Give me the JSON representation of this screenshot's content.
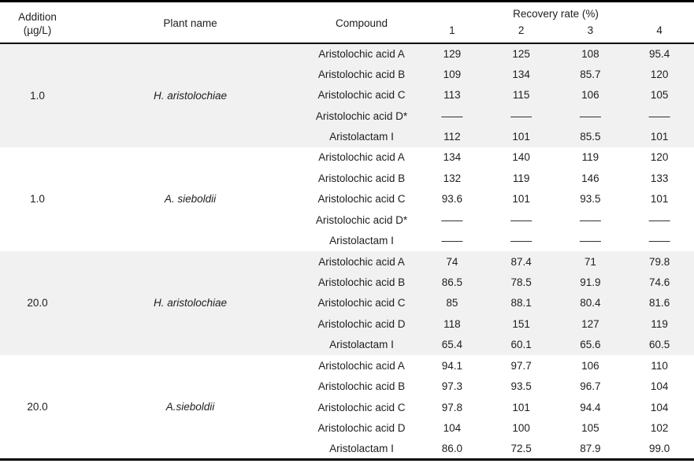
{
  "table": {
    "header": {
      "addition_line1": "Addition",
      "addition_line2": "(µg/L)",
      "plant_label": "Plant name",
      "compound_label": "Compound",
      "recovery_label": "Recovery rate (%)",
      "runs": [
        "1",
        "2",
        "3",
        "4"
      ]
    },
    "empty_value": "——",
    "groups": [
      {
        "addition": "1.0",
        "plant": "H. aristolochiae",
        "shaded": true,
        "rows": [
          {
            "compound": "Aristolochic acid A",
            "values": [
              "129",
              "125",
              "108",
              "95.4"
            ]
          },
          {
            "compound": "Aristolochic acid B",
            "values": [
              "109",
              "134",
              "85.7",
              "120"
            ]
          },
          {
            "compound": "Aristolochic acid C",
            "values": [
              "113",
              "115",
              "106",
              "105"
            ]
          },
          {
            "compound": "Aristolochic acid D*",
            "values": [
              "——",
              "——",
              "——",
              "——"
            ]
          },
          {
            "compound": "Aristolactam I",
            "values": [
              "112",
              "101",
              "85.5",
              "101"
            ]
          }
        ]
      },
      {
        "addition": "1.0",
        "plant": "A. sieboldii",
        "shaded": false,
        "rows": [
          {
            "compound": "Aristolochic acid A",
            "values": [
              "134",
              "140",
              "119",
              "120"
            ]
          },
          {
            "compound": "Aristolochic acid B",
            "values": [
              "132",
              "119",
              "146",
              "133"
            ]
          },
          {
            "compound": "Aristolochic acid C",
            "values": [
              "93.6",
              "101",
              "93.5",
              "101"
            ]
          },
          {
            "compound": "Aristolochic acid D*",
            "values": [
              "——",
              "——",
              "——",
              "——"
            ]
          },
          {
            "compound": "Aristolactam I",
            "values": [
              "——",
              "——",
              "——",
              "——"
            ]
          }
        ]
      },
      {
        "addition": "20.0",
        "plant": "H. aristolochiae",
        "shaded": true,
        "rows": [
          {
            "compound": "Aristolochic acid A",
            "values": [
              "74",
              "87.4",
              "71",
              "79.8"
            ]
          },
          {
            "compound": "Aristolochic acid B",
            "values": [
              "86.5",
              "78.5",
              "91.9",
              "74.6"
            ]
          },
          {
            "compound": "Aristolochic acid C",
            "values": [
              "85",
              "88.1",
              "80.4",
              "81.6"
            ]
          },
          {
            "compound": "Aristolochic acid D",
            "values": [
              "118",
              "151",
              "127",
              "119"
            ]
          },
          {
            "compound": "Aristolactam I",
            "values": [
              "65.4",
              "60.1",
              "65.6",
              "60.5"
            ]
          }
        ]
      },
      {
        "addition": "20.0",
        "plant": "A.sieboldii",
        "shaded": false,
        "rows": [
          {
            "compound": "Aristolochic acid A",
            "values": [
              "94.1",
              "97.7",
              "106",
              "110"
            ]
          },
          {
            "compound": "Aristolochic acid B",
            "values": [
              "97.3",
              "93.5",
              "96.7",
              "104"
            ]
          },
          {
            "compound": "Aristolochic acid C",
            "values": [
              "97.8",
              "101",
              "94.4",
              "104"
            ]
          },
          {
            "compound": "Aristolochic acid D",
            "values": [
              "104",
              "100",
              "105",
              "102"
            ]
          },
          {
            "compound": "Aristolactam I",
            "values": [
              "86.0",
              "72.5",
              "87.9",
              "99.0"
            ]
          }
        ]
      }
    ]
  },
  "colors": {
    "band": "#f1f1f1",
    "rule": "#000000",
    "text": "#1e1e1e"
  }
}
